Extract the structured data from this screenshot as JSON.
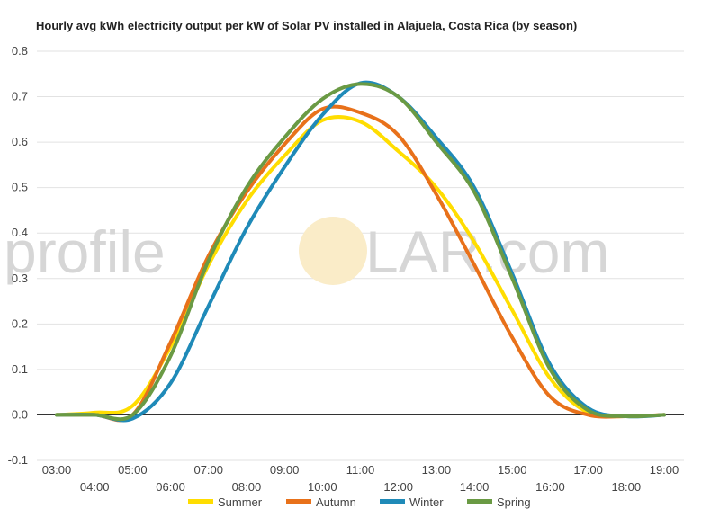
{
  "chart_data": {
    "type": "line",
    "title": "Hourly avg kWh electricity output per kW of Solar PV installed in Alajuela, Costa Rica (by season)",
    "xlabel": "",
    "ylabel": "",
    "x": [
      "03:00",
      "04:00",
      "05:00",
      "06:00",
      "07:00",
      "08:00",
      "09:00",
      "10:00",
      "11:00",
      "12:00",
      "13:00",
      "14:00",
      "15:00",
      "16:00",
      "17:00",
      "18:00",
      "19:00"
    ],
    "ylim": [
      -0.1,
      0.8
    ],
    "yticks": [
      -0.1,
      0.0,
      0.1,
      0.2,
      0.3,
      0.4,
      0.5,
      0.6,
      0.7,
      0.8
    ],
    "grid": true,
    "legend_position": "bottom",
    "series": [
      {
        "name": "Summer",
        "color": "#ffdd00",
        "values": [
          0.0,
          0.005,
          0.02,
          0.15,
          0.33,
          0.47,
          0.57,
          0.648,
          0.645,
          0.58,
          0.5,
          0.38,
          0.23,
          0.08,
          0.005,
          -0.003,
          0.0
        ]
      },
      {
        "name": "Autumn",
        "color": "#e8711a",
        "values": [
          0.0,
          0.0,
          0.0,
          0.16,
          0.35,
          0.49,
          0.595,
          0.673,
          0.665,
          0.615,
          0.485,
          0.33,
          0.17,
          0.04,
          0.0,
          -0.003,
          0.0
        ]
      },
      {
        "name": "Winter",
        "color": "#1f8ab8",
        "values": [
          0.0,
          0.0,
          -0.008,
          0.07,
          0.24,
          0.41,
          0.545,
          0.66,
          0.73,
          0.7,
          0.61,
          0.5,
          0.31,
          0.11,
          0.015,
          -0.003,
          0.0
        ]
      },
      {
        "name": "Spring",
        "color": "#6a9a44",
        "values": [
          0.0,
          0.0,
          0.0,
          0.13,
          0.34,
          0.5,
          0.61,
          0.695,
          0.728,
          0.7,
          0.6,
          0.49,
          0.3,
          0.1,
          0.01,
          -0.003,
          0.0
        ]
      }
    ]
  },
  "watermark": {
    "text_left": "profile",
    "text_right": "LAR.com"
  }
}
